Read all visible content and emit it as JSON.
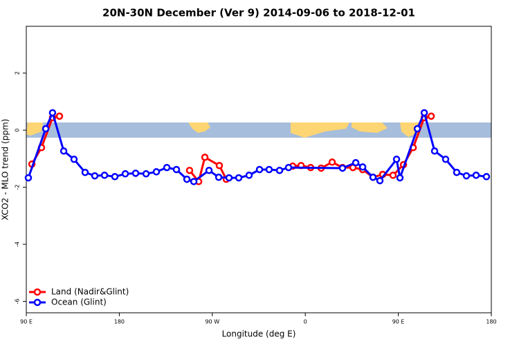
{
  "chart_data": {
    "type": "line",
    "title": "20N-30N December (Ver 9)   2014-09-06 to 2018-12-01",
    "x_label": "Longitude (deg E)",
    "y_label": "XCO2 - MLO trend (ppm)",
    "xlim": [
      90,
      540
    ],
    "ylim": [
      -6.4,
      3.64
    ],
    "xticks": [
      {
        "value": 90,
        "label": "90 E"
      },
      {
        "value": 180,
        "label": "180"
      },
      {
        "value": 270,
        "label": "90 W"
      },
      {
        "value": 360,
        "label": "0"
      },
      {
        "value": 450,
        "label": "90 E"
      },
      {
        "value": 540,
        "label": "180"
      }
    ],
    "yticks": [
      2,
      0,
      -2,
      -4,
      -6
    ],
    "legend": "bottom-left",
    "series": [
      {
        "name": "Land (Nadir&Glint)",
        "color": "#ff0000",
        "x": [
          95.4,
          104.7,
          115.4,
          122.1,
          null,
          248.0,
          256.8,
          262.8,
          276.8,
          283.5,
          null,
          347.8,
          355.9,
          365.2,
          375.3,
          386.0,
          396.0,
          406.1,
          415.5,
          425.5,
          434.9,
          444.9,
          455.0,
          464.4,
          475.1,
          481.8
        ],
        "values": [
          -1.19,
          -0.61,
          0.44,
          0.49,
          null,
          -1.41,
          -1.8,
          -0.95,
          -1.24,
          -1.72,
          null,
          -1.26,
          -1.24,
          -1.31,
          -1.33,
          -1.12,
          -1.31,
          -1.31,
          -1.38,
          -1.65,
          -1.55,
          -1.58,
          -1.21,
          -0.61,
          0.44,
          0.49
        ]
      },
      {
        "name": "Ocean (Glint)",
        "color": "#0000ff",
        "x": [
          92.0,
          108.8,
          115.4,
          126.2,
          136.2,
          146.9,
          156.3,
          165.7,
          175.7,
          185.8,
          195.8,
          205.9,
          215.9,
          226.0,
          235.3,
          245.4,
          252.1,
          266.8,
          276.2,
          286.2,
          295.6,
          305.6,
          315.7,
          325.0,
          335.1,
          343.8,
          396.0,
          408.8,
          415.5,
          425.5,
          432.2,
          448.3,
          451.6,
          468.4,
          475.1,
          485.1,
          495.8,
          506.5,
          515.9,
          525.3,
          535.3
        ],
        "values": [
          -1.67,
          0.05,
          0.61,
          -0.73,
          -1.02,
          -1.48,
          -1.6,
          -1.58,
          -1.63,
          -1.53,
          -1.51,
          -1.53,
          -1.46,
          -1.31,
          -1.38,
          -1.72,
          -1.8,
          -1.41,
          -1.65,
          -1.67,
          -1.67,
          -1.58,
          -1.38,
          -1.38,
          -1.41,
          -1.31,
          -1.33,
          -1.14,
          -1.29,
          -1.65,
          -1.77,
          -1.02,
          -1.67,
          0.05,
          0.61,
          -0.73,
          -1.02,
          -1.48,
          -1.6,
          -1.58,
          -1.63
        ]
      }
    ]
  }
}
